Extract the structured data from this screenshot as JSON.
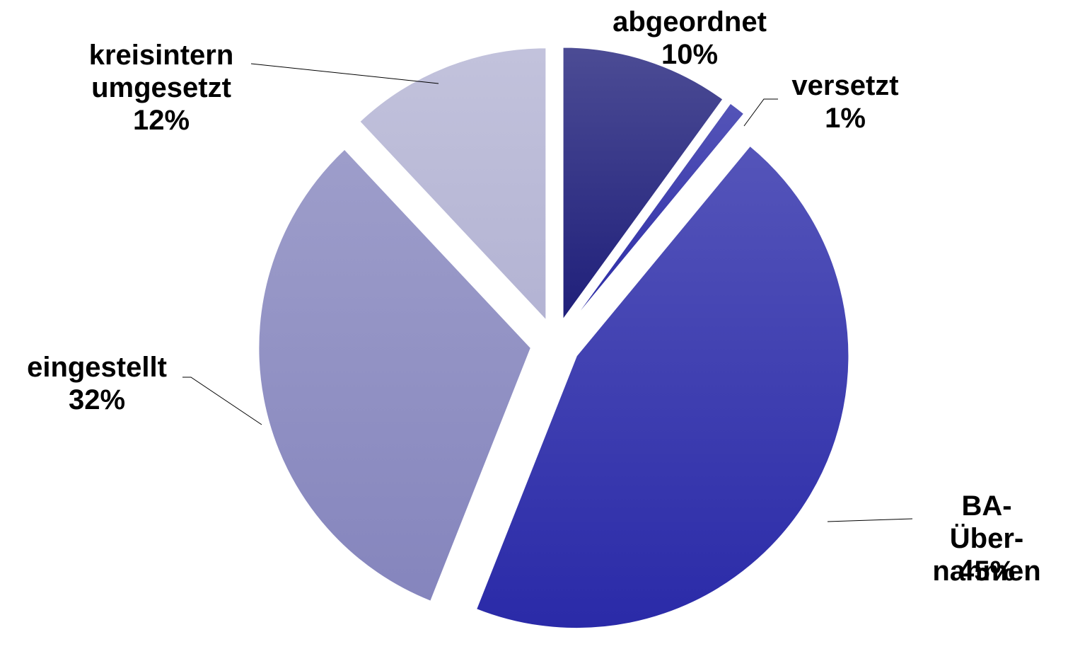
{
  "chart_data": {
    "type": "pie",
    "categories": [
      "abgeordnet",
      "versetzt",
      "BA-Über-\nnahmen",
      "eingestellt",
      "kreisintern\numgesetzt"
    ],
    "values": [
      10,
      1,
      45,
      32,
      12
    ],
    "value_labels": [
      "10%",
      "1%",
      "45%",
      "32%",
      "12%"
    ],
    "colors": [
      "#1f1f7a",
      "#2a2aa6",
      "#2a2aa8",
      "#8585bd",
      "#b3b3d3"
    ]
  }
}
